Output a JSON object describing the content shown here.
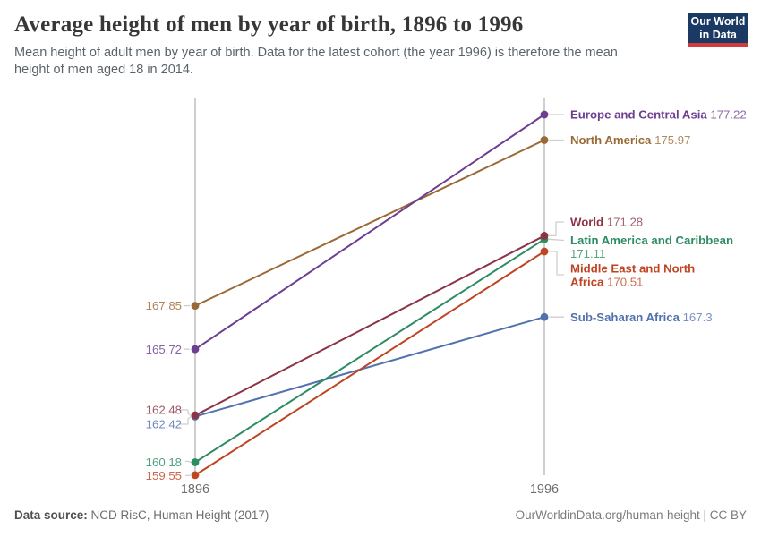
{
  "header": {
    "title": "Average height of men by year of birth, 1896 to 1996",
    "subtitle": "Mean height of adult men by year of birth. Data for the latest cohort (the year 1996) is therefore the mean height of men aged 18 in 2014.",
    "logo": {
      "line1": "Our World",
      "line2": "in Data",
      "bg_color": "#1a3a63",
      "accent_color": "#d13b3b"
    }
  },
  "chart_data": {
    "type": "line",
    "variant": "slope",
    "x": [
      "1896",
      "1996"
    ],
    "xlabel": "",
    "ylabel": "",
    "grid": false,
    "legend_position": "right-labels",
    "axis_color": "#c8c8c8",
    "connector_color": "#cfcfcf",
    "tick_color": "#6e6e6e",
    "series": [
      {
        "name": "Europe and Central Asia",
        "color": "#6d3e91",
        "values": [
          165.72,
          177.22
        ],
        "start_label": "165.72",
        "end_label_lines": [
          "Europe and Central Asia 177.22"
        ]
      },
      {
        "name": "North America",
        "color": "#9a6a35",
        "values": [
          167.85,
          175.97
        ],
        "start_label": "167.85",
        "end_label_lines": [
          "North America 175.97"
        ]
      },
      {
        "name": "World",
        "color": "#8b3447",
        "values": [
          162.48,
          171.28
        ],
        "start_label": "162.48",
        "end_label_lines": [
          "World 171.28"
        ]
      },
      {
        "name": "Latin America and Caribbean",
        "color": "#2c8c62",
        "values": [
          160.18,
          171.11
        ],
        "start_label": "160.18",
        "end_label_lines": [
          "Latin America and Caribbean",
          "171.11"
        ]
      },
      {
        "name": "Middle East and North Africa",
        "color": "#bf4522",
        "values": [
          159.55,
          170.51
        ],
        "start_label": "159.55",
        "end_label_lines": [
          "Middle East and North",
          "Africa 170.51"
        ]
      },
      {
        "name": "Sub-Saharan Africa",
        "color": "#5272af",
        "values": [
          162.42,
          167.3
        ],
        "start_label": "162.42",
        "end_label_lines": [
          "Sub-Saharan Africa 167.3"
        ]
      }
    ]
  },
  "footer": {
    "source_label": "Data source:",
    "source_text": "NCD RisC, Human Height (2017)",
    "credit": "OurWorldinData.org/human-height | CC BY"
  }
}
